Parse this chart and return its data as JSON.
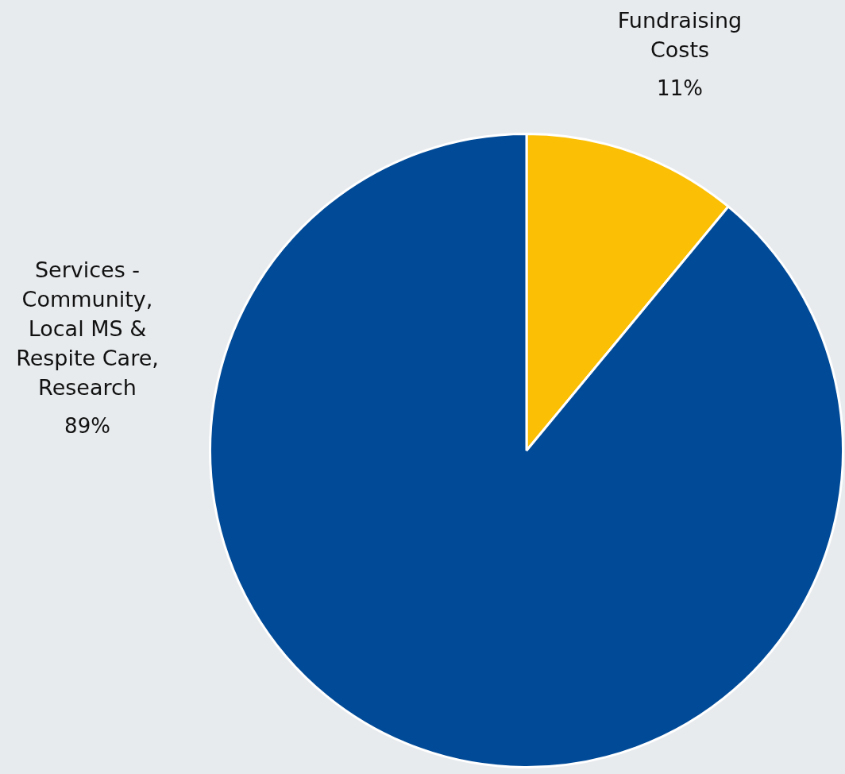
{
  "chart_data": {
    "type": "pie",
    "categories": [
      "Fundraising Costs",
      "Services - Community, Local MS & Respite Care, Research"
    ],
    "values": [
      11,
      89
    ],
    "colors": [
      "#fbbf05",
      "#004a97"
    ],
    "value_labels": [
      "11%",
      "89%"
    ]
  }
}
